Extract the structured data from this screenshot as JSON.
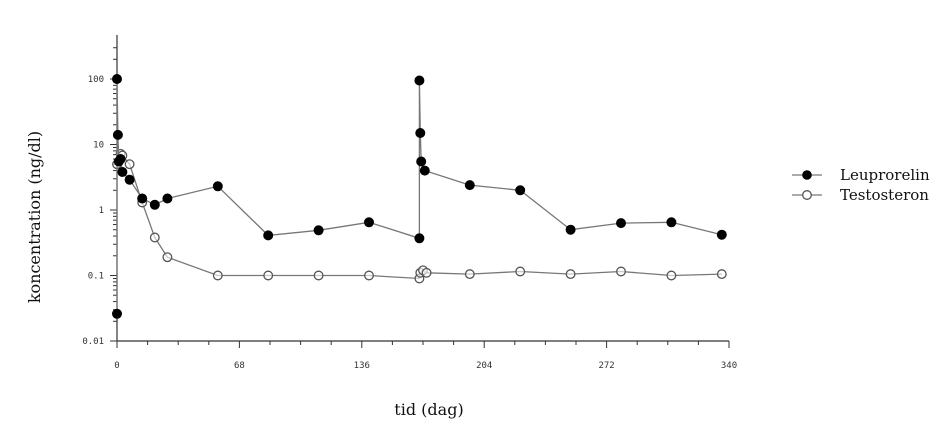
{
  "chart_data": {
    "type": "line",
    "title": "",
    "xlabel": "tid (dag)",
    "ylabel": "koncentration (ng/dl)",
    "xlim": [
      0,
      340
    ],
    "ylim": [
      0.01,
      300
    ],
    "yscale": "log",
    "grid": false,
    "legend_position": "right",
    "x_ticks": [
      0,
      68,
      136,
      204,
      272,
      340
    ],
    "x_tick_labels": [
      "0",
      "68",
      "136",
      "204",
      "272",
      "340"
    ],
    "y_ticks": [
      0.01,
      0.1,
      1,
      10,
      100
    ],
    "y_tick_labels": [
      "0.01",
      "0.1",
      "1",
      "10",
      "100"
    ],
    "series": [
      {
        "name": "Leuprorelin",
        "marker": "filled-circle",
        "color": "#000000",
        "line_color": "#777777",
        "points": [
          [
            0,
            0.026
          ],
          [
            0,
            100
          ],
          [
            0.5,
            14
          ],
          [
            1,
            5.5
          ],
          [
            2,
            6
          ],
          [
            3,
            3.8
          ],
          [
            7,
            2.9
          ],
          [
            14,
            1.5
          ],
          [
            21,
            1.2
          ],
          [
            28,
            1.5
          ],
          [
            56,
            2.3
          ],
          [
            84,
            0.41
          ],
          [
            112,
            0.49
          ],
          [
            140,
            0.65
          ],
          [
            168,
            0.37
          ],
          [
            168,
            95
          ],
          [
            168.5,
            15
          ],
          [
            169,
            5.5
          ],
          [
            171,
            4
          ],
          [
            196,
            2.4
          ],
          [
            224,
            2
          ],
          [
            252,
            0.5
          ],
          [
            280,
            0.63
          ],
          [
            308,
            0.65
          ],
          [
            336,
            0.42
          ]
        ]
      },
      {
        "name": "Testosteron",
        "marker": "open-circle",
        "color": "#555555",
        "line_color": "#777777",
        "points": [
          [
            0,
            5
          ],
          [
            2,
            7.2
          ],
          [
            3,
            6.8
          ],
          [
            7,
            5
          ],
          [
            14,
            1.3
          ],
          [
            21,
            0.38
          ],
          [
            28,
            0.19
          ],
          [
            56,
            0.1
          ],
          [
            84,
            0.1
          ],
          [
            112,
            0.1
          ],
          [
            140,
            0.1
          ],
          [
            168,
            0.09
          ],
          [
            168.5,
            0.11
          ],
          [
            170,
            0.12
          ],
          [
            172,
            0.11
          ],
          [
            196,
            0.105
          ],
          [
            224,
            0.115
          ],
          [
            252,
            0.105
          ],
          [
            280,
            0.115
          ],
          [
            308,
            0.1
          ],
          [
            336,
            0.105
          ]
        ]
      }
    ]
  }
}
